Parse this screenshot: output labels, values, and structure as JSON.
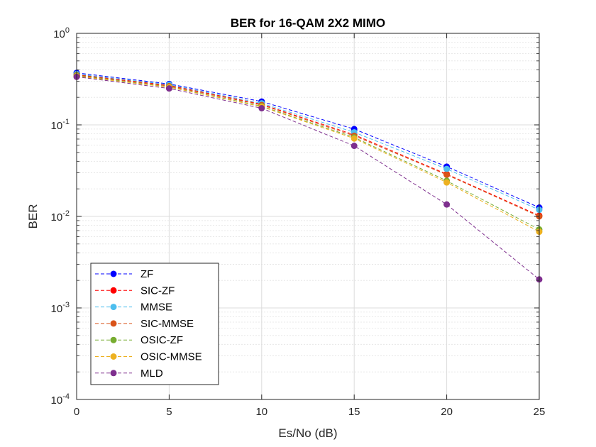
{
  "chart_data": {
    "type": "line",
    "title": "BER for 16-QAM 2X2 MIMO",
    "xlabel": "Es/No (dB)",
    "ylabel": "BER",
    "x": [
      0,
      5,
      10,
      15,
      20,
      25
    ],
    "xlim": [
      0,
      25
    ],
    "ylim": [
      0.0001,
      1
    ],
    "yscale": "log",
    "xticks": [
      "0",
      "5",
      "10",
      "15",
      "20",
      "25"
    ],
    "yticks": [
      {
        "base": "10",
        "exp": "0"
      },
      {
        "base": "10",
        "exp": "-1"
      },
      {
        "base": "10",
        "exp": "-2"
      },
      {
        "base": "10",
        "exp": "-3"
      },
      {
        "base": "10",
        "exp": "-4"
      }
    ],
    "grid": true,
    "legend_position": "bottom-left",
    "line_style": "dashed",
    "marker": "circle",
    "series": [
      {
        "name": "ZF",
        "color": "#0000ff",
        "values": [
          0.37,
          0.28,
          0.18,
          0.09,
          0.035,
          0.0125
        ]
      },
      {
        "name": "SIC-ZF",
        "color": "#ff0000",
        "values": [
          0.355,
          0.27,
          0.168,
          0.078,
          0.029,
          0.0102
        ]
      },
      {
        "name": "MMSE",
        "color": "#4dbeee",
        "values": [
          0.36,
          0.275,
          0.172,
          0.083,
          0.033,
          0.0118
        ]
      },
      {
        "name": "SIC-MMSE",
        "color": "#d95319",
        "values": [
          0.35,
          0.265,
          0.165,
          0.076,
          0.0285,
          0.01
        ]
      },
      {
        "name": "OSIC-ZF",
        "color": "#77ac30",
        "values": [
          0.345,
          0.26,
          0.16,
          0.073,
          0.0245,
          0.0072
        ]
      },
      {
        "name": "OSIC-MMSE",
        "color": "#edb120",
        "values": [
          0.34,
          0.258,
          0.158,
          0.071,
          0.0235,
          0.0068
        ]
      },
      {
        "name": "MLD",
        "color": "#7e2f8e",
        "values": [
          0.335,
          0.25,
          0.152,
          0.059,
          0.0135,
          0.00205
        ]
      }
    ]
  }
}
